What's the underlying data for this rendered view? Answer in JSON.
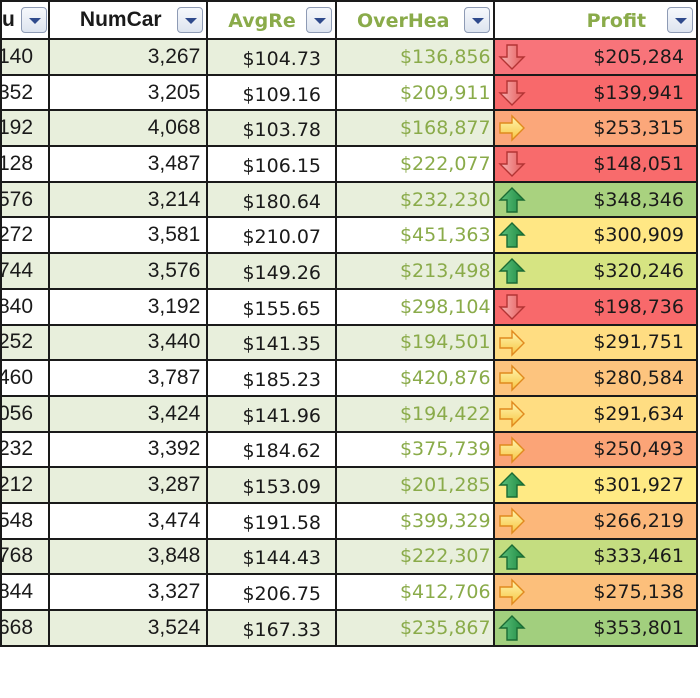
{
  "headers": {
    "col0": "u",
    "num_cars": "NumCar",
    "avg_rev": "AvgRe",
    "overhead": "OverHea",
    "profit": "Profit"
  },
  "icons": {
    "down": "red-down-arrow-icon",
    "side": "yellow-right-arrow-icon",
    "up": "green-up-arrow-icon"
  },
  "colors": {
    "header_green_text": "#8aab4a",
    "band_fill": "#e8efdc",
    "scale_red": "#f8696b",
    "scale_orange": "#fbaa77",
    "scale_yellow": "#ffeb84",
    "scale_green": "#a9d27f"
  },
  "rows": [
    {
      "c0": "140",
      "num_cars": "3,267",
      "avg_rev": "$104.73",
      "overhead": "$136,856",
      "profit": "$205,284",
      "trend": "down",
      "fill": "#f8747a"
    },
    {
      "c0": "352",
      "num_cars": "3,205",
      "avg_rev": "$109.16",
      "overhead": "$209,911",
      "profit": "$139,941",
      "trend": "down",
      "fill": "#f8696b"
    },
    {
      "c0": "192",
      "num_cars": "4,068",
      "avg_rev": "$103.78",
      "overhead": "$168,877",
      "profit": "$253,315",
      "trend": "side",
      "fill": "#fba77a"
    },
    {
      "c0": "128",
      "num_cars": "3,487",
      "avg_rev": "$106.15",
      "overhead": "$222,077",
      "profit": "$148,051",
      "trend": "down",
      "fill": "#f86b6c"
    },
    {
      "c0": "576",
      "num_cars": "3,214",
      "avg_rev": "$180.64",
      "overhead": "$232,230",
      "profit": "$348,346",
      "trend": "up",
      "fill": "#a9d27f"
    },
    {
      "c0": "272",
      "num_cars": "3,581",
      "avg_rev": "$210.07",
      "overhead": "$451,363",
      "profit": "$300,909",
      "trend": "up",
      "fill": "#ffe784"
    },
    {
      "c0": "744",
      "num_cars": "3,576",
      "avg_rev": "$149.26",
      "overhead": "$213,498",
      "profit": "$320,246",
      "trend": "up",
      "fill": "#d6e482"
    },
    {
      "c0": "840",
      "num_cars": "3,192",
      "avg_rev": "$155.65",
      "overhead": "$298,104",
      "profit": "$198,736",
      "trend": "down",
      "fill": "#f8696b"
    },
    {
      "c0": "252",
      "num_cars": "3,440",
      "avg_rev": "$141.35",
      "overhead": "$194,501",
      "profit": "$291,751",
      "trend": "side",
      "fill": "#ffdd82"
    },
    {
      "c0": "460",
      "num_cars": "3,787",
      "avg_rev": "$185.23",
      "overhead": "$420,876",
      "profit": "$280,584",
      "trend": "side",
      "fill": "#fdc47e"
    },
    {
      "c0": "056",
      "num_cars": "3,424",
      "avg_rev": "$141.96",
      "overhead": "$194,422",
      "profit": "$291,634",
      "trend": "side",
      "fill": "#ffdd82"
    },
    {
      "c0": "232",
      "num_cars": "3,392",
      "avg_rev": "$184.62",
      "overhead": "$375,739",
      "profit": "$250,493",
      "trend": "side",
      "fill": "#fba477"
    },
    {
      "c0": "212",
      "num_cars": "3,287",
      "avg_rev": "$153.09",
      "overhead": "$201,285",
      "profit": "$301,927",
      "trend": "up",
      "fill": "#ffea84"
    },
    {
      "c0": "548",
      "num_cars": "3,474",
      "avg_rev": "$191.58",
      "overhead": "$399,329",
      "profit": "$266,219",
      "trend": "side",
      "fill": "#fcb77a"
    },
    {
      "c0": "768",
      "num_cars": "3,848",
      "avg_rev": "$144.43",
      "overhead": "$222,307",
      "profit": "$333,461",
      "trend": "up",
      "fill": "#c4dd80"
    },
    {
      "c0": "844",
      "num_cars": "3,327",
      "avg_rev": "$206.75",
      "overhead": "$412,706",
      "profit": "$275,138",
      "trend": "side",
      "fill": "#fcbf7b"
    },
    {
      "c0": "668",
      "num_cars": "3,524",
      "avg_rev": "$167.33",
      "overhead": "$235,867",
      "profit": "$353,801",
      "trend": "up",
      "fill": "#a2cf7e"
    }
  ]
}
